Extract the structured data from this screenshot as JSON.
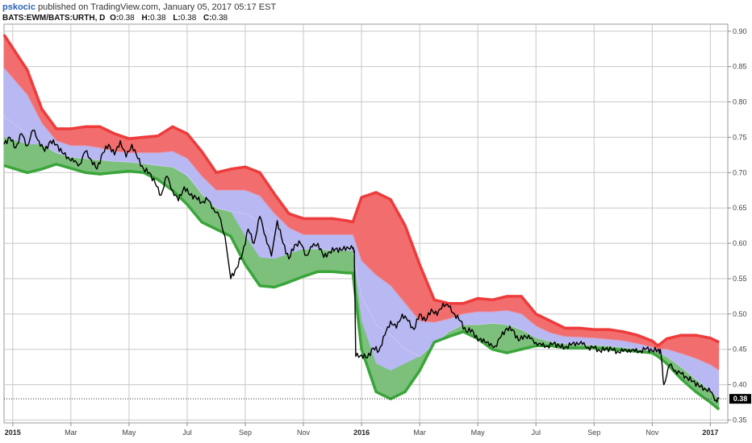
{
  "header": {
    "author": "pskocic",
    "published_text": "published on TradingView.com, January 05, 2017 05:17 EST",
    "symbol": "BATS:EWM/BATS:URTH, D",
    "o_label": "O:",
    "o_value": "0.38",
    "h_label": "H:",
    "h_value": "0.38",
    "l_label": "L:",
    "l_value": "0.38",
    "c_label": "C:",
    "c_value": "0.38",
    "last_value": "0.38"
  },
  "colors": {
    "upper_band": "#f26d6d",
    "upper_band_edge": "#ee3b3b",
    "mid_band": "#b8b8f2",
    "lower_band": "#7cc07c",
    "lower_band_edge": "#3aa53a",
    "price": "#000000",
    "grid": "#c8c8c8",
    "last_marker": "#000000"
  },
  "chart_data": {
    "type": "line",
    "title": "",
    "xlabel": "",
    "ylabel": "",
    "x_unit": "months since Jan 2015",
    "xlim": [
      -0.3,
      24.6
    ],
    "ylim": [
      0.346,
      0.91
    ],
    "grid": true,
    "y_ticks": [
      0.35,
      0.4,
      0.45,
      0.5,
      0.55,
      0.6,
      0.65,
      0.7,
      0.75,
      0.8,
      0.85,
      0.9
    ],
    "y_tick_labels": [
      "0.35",
      "0.40",
      "0.45",
      "0.50",
      "0.55",
      "0.60",
      "0.65",
      "0.70",
      "0.75",
      "0.80",
      "0.85",
      "0.90"
    ],
    "x_ticks": [
      {
        "x": 0,
        "label": "2015",
        "year": true
      },
      {
        "x": 2,
        "label": "Mar",
        "year": false
      },
      {
        "x": 4,
        "label": "May",
        "year": false
      },
      {
        "x": 6,
        "label": "Jul",
        "year": false
      },
      {
        "x": 8,
        "label": "Sep",
        "year": false
      },
      {
        "x": 10,
        "label": "Nov",
        "year": false
      },
      {
        "x": 12,
        "label": "2016",
        "year": true
      },
      {
        "x": 14,
        "label": "Mar",
        "year": false
      },
      {
        "x": 16,
        "label": "May",
        "year": false
      },
      {
        "x": 18,
        "label": "Jul",
        "year": false
      },
      {
        "x": 20,
        "label": "Sep",
        "year": false
      },
      {
        "x": 22,
        "label": "Nov",
        "year": false
      },
      {
        "x": 24,
        "label": "2017",
        "year": true
      }
    ],
    "series": [
      {
        "key": "upper",
        "x": [
          -0.3,
          0.5,
          1,
          1.5,
          2,
          2.5,
          3,
          3.5,
          4,
          4.5,
          5,
          5.5,
          6,
          6.5,
          7,
          7.5,
          8,
          8.5,
          9,
          9.5,
          10,
          10.5,
          11,
          11.5,
          11.7,
          12,
          12.5,
          13,
          13.5,
          14,
          14.5,
          15,
          15.5,
          16,
          16.5,
          17,
          17.5,
          18,
          18.5,
          19,
          19.5,
          20,
          20.5,
          21,
          21.5,
          22,
          22.2,
          22.5,
          23,
          23.5,
          24,
          24.3
        ],
        "values": [
          0.895,
          0.845,
          0.79,
          0.762,
          0.762,
          0.765,
          0.765,
          0.755,
          0.748,
          0.75,
          0.752,
          0.765,
          0.755,
          0.73,
          0.7,
          0.705,
          0.708,
          0.7,
          0.67,
          0.642,
          0.635,
          0.635,
          0.635,
          0.632,
          0.63,
          0.665,
          0.672,
          0.662,
          0.625,
          0.57,
          0.52,
          0.515,
          0.515,
          0.522,
          0.52,
          0.525,
          0.525,
          0.5,
          0.49,
          0.48,
          0.48,
          0.478,
          0.478,
          0.475,
          0.47,
          0.462,
          0.455,
          0.465,
          0.47,
          0.47,
          0.466,
          0.46
        ]
      },
      {
        "key": "middle",
        "x": [
          -0.3,
          0.5,
          1,
          1.5,
          2,
          2.5,
          3,
          3.5,
          4,
          4.5,
          5,
          5.5,
          6,
          6.5,
          7,
          7.5,
          8,
          8.5,
          9,
          9.5,
          10,
          10.5,
          11,
          11.5,
          11.7,
          12,
          12.5,
          13,
          13.5,
          14,
          14.5,
          15,
          15.5,
          16,
          16.5,
          17,
          17.5,
          18,
          18.5,
          19,
          19.5,
          20,
          20.5,
          21,
          21.5,
          22,
          22.2,
          22.5,
          23,
          23.5,
          24,
          24.3
        ],
        "values": [
          0.848,
          0.81,
          0.77,
          0.745,
          0.738,
          0.738,
          0.735,
          0.73,
          0.728,
          0.728,
          0.728,
          0.73,
          0.72,
          0.695,
          0.675,
          0.675,
          0.675,
          0.667,
          0.642,
          0.622,
          0.612,
          0.612,
          0.612,
          0.612,
          0.612,
          0.575,
          0.555,
          0.54,
          0.515,
          0.49,
          0.488,
          0.493,
          0.5,
          0.503,
          0.503,
          0.505,
          0.5,
          0.483,
          0.473,
          0.468,
          0.467,
          0.466,
          0.464,
          0.462,
          0.458,
          0.453,
          0.45,
          0.45,
          0.444,
          0.437,
          0.428,
          0.42
        ]
      },
      {
        "key": "basis",
        "x": [
          -0.3,
          0.5,
          1,
          1.5,
          2,
          2.5,
          3,
          3.5,
          4,
          4.5,
          5,
          5.5,
          6,
          6.5,
          7,
          7.5,
          8,
          8.5,
          9,
          9.5,
          10,
          10.5,
          11,
          11.5,
          11.7,
          12,
          12.5,
          13,
          13.5,
          14,
          14.5,
          15,
          15.5,
          16,
          16.5,
          17,
          17.5,
          18,
          18.5,
          19,
          19.5,
          20,
          20.5,
          21,
          21.5,
          22,
          22.2,
          22.5,
          23,
          23.5,
          24,
          24.3
        ],
        "values": [
          0.78,
          0.755,
          0.74,
          0.728,
          0.722,
          0.72,
          0.718,
          0.716,
          0.715,
          0.713,
          0.71,
          0.708,
          0.697,
          0.67,
          0.65,
          0.645,
          0.642,
          0.63,
          0.61,
          0.597,
          0.592,
          0.592,
          0.59,
          0.59,
          0.59,
          0.525,
          0.485,
          0.47,
          0.45,
          0.44,
          0.458,
          0.475,
          0.485,
          0.485,
          0.487,
          0.485,
          0.478,
          0.467,
          0.461,
          0.458,
          0.457,
          0.456,
          0.455,
          0.453,
          0.45,
          0.448,
          0.446,
          0.44,
          0.425,
          0.408,
          0.392,
          0.38
        ]
      },
      {
        "key": "lower",
        "x": [
          -0.3,
          0.5,
          1,
          1.5,
          2,
          2.5,
          3,
          3.5,
          4,
          4.5,
          5,
          5.5,
          6,
          6.5,
          7,
          7.5,
          8,
          8.5,
          9,
          9.5,
          10,
          10.5,
          11,
          11.5,
          11.7,
          12,
          12.5,
          13,
          13.5,
          14,
          14.5,
          15,
          15.5,
          16,
          16.5,
          17,
          17.5,
          18,
          18.5,
          19,
          19.5,
          20,
          20.5,
          21,
          21.5,
          22,
          22.2,
          22.5,
          23,
          23.5,
          24,
          24.3
        ],
        "values": [
          0.71,
          0.7,
          0.705,
          0.712,
          0.706,
          0.7,
          0.698,
          0.7,
          0.702,
          0.7,
          0.69,
          0.675,
          0.655,
          0.63,
          0.62,
          0.61,
          0.57,
          0.54,
          0.538,
          0.545,
          0.553,
          0.56,
          0.56,
          0.558,
          0.558,
          0.45,
          0.39,
          0.38,
          0.39,
          0.42,
          0.46,
          0.468,
          0.475,
          0.465,
          0.45,
          0.445,
          0.45,
          0.455,
          0.455,
          0.452,
          0.452,
          0.452,
          0.45,
          0.449,
          0.447,
          0.445,
          0.44,
          0.43,
          0.408,
          0.39,
          0.375,
          0.365
        ]
      },
      {
        "key": "price",
        "x": [
          -0.3,
          -0.1,
          0.1,
          0.3,
          0.5,
          0.7,
          0.9,
          1.1,
          1.3,
          1.5,
          1.7,
          1.9,
          2.1,
          2.3,
          2.5,
          2.7,
          2.9,
          3.1,
          3.3,
          3.5,
          3.7,
          3.9,
          4.1,
          4.3,
          4.5,
          4.7,
          4.9,
          5.1,
          5.3,
          5.5,
          5.7,
          5.9,
          6.1,
          6.3,
          6.5,
          6.7,
          6.9,
          7.1,
          7.3,
          7.5,
          7.7,
          7.9,
          8.1,
          8.3,
          8.5,
          8.7,
          8.9,
          9.1,
          9.3,
          9.5,
          9.7,
          9.9,
          10.1,
          10.3,
          10.5,
          10.7,
          10.9,
          11.1,
          11.3,
          11.5,
          11.7,
          11.75,
          11.8,
          12.0,
          12.2,
          12.4,
          12.6,
          12.8,
          13.0,
          13.2,
          13.4,
          13.6,
          13.8,
          14.0,
          14.2,
          14.4,
          14.6,
          14.8,
          15.0,
          15.2,
          15.4,
          15.6,
          15.8,
          16.0,
          16.2,
          16.4,
          16.6,
          16.8,
          17.0,
          17.2,
          17.4,
          17.6,
          17.8,
          18.0,
          18.2,
          18.4,
          18.6,
          18.8,
          19.0,
          19.2,
          19.4,
          19.6,
          19.8,
          20.0,
          20.2,
          20.4,
          20.6,
          20.8,
          21.0,
          21.2,
          21.4,
          21.6,
          21.8,
          22.0,
          22.2,
          22.3,
          22.4,
          22.6,
          22.8,
          23.0,
          23.2,
          23.4,
          23.6,
          23.8,
          24.0,
          24.2,
          24.3
        ],
        "values": [
          0.74,
          0.75,
          0.735,
          0.755,
          0.738,
          0.76,
          0.745,
          0.73,
          0.745,
          0.74,
          0.728,
          0.722,
          0.715,
          0.712,
          0.73,
          0.718,
          0.705,
          0.728,
          0.74,
          0.725,
          0.745,
          0.722,
          0.74,
          0.72,
          0.705,
          0.7,
          0.685,
          0.668,
          0.695,
          0.675,
          0.66,
          0.68,
          0.668,
          0.665,
          0.658,
          0.662,
          0.65,
          0.638,
          0.61,
          0.55,
          0.565,
          0.585,
          0.62,
          0.6,
          0.638,
          0.61,
          0.582,
          0.632,
          0.6,
          0.578,
          0.598,
          0.6,
          0.583,
          0.595,
          0.6,
          0.58,
          0.588,
          0.592,
          0.59,
          0.595,
          0.592,
          0.59,
          0.44,
          0.442,
          0.438,
          0.452,
          0.448,
          0.47,
          0.49,
          0.48,
          0.5,
          0.49,
          0.478,
          0.5,
          0.49,
          0.507,
          0.498,
          0.515,
          0.51,
          0.5,
          0.49,
          0.475,
          0.478,
          0.462,
          0.465,
          0.455,
          0.455,
          0.468,
          0.48,
          0.478,
          0.462,
          0.47,
          0.465,
          0.46,
          0.455,
          0.455,
          0.458,
          0.455,
          0.453,
          0.456,
          0.46,
          0.457,
          0.453,
          0.452,
          0.448,
          0.451,
          0.45,
          0.447,
          0.447,
          0.45,
          0.447,
          0.448,
          0.451,
          0.448,
          0.45,
          0.445,
          0.4,
          0.428,
          0.42,
          0.415,
          0.41,
          0.405,
          0.398,
          0.395,
          0.39,
          0.378,
          0.38
        ]
      }
    ],
    "last_value": 0.38
  }
}
